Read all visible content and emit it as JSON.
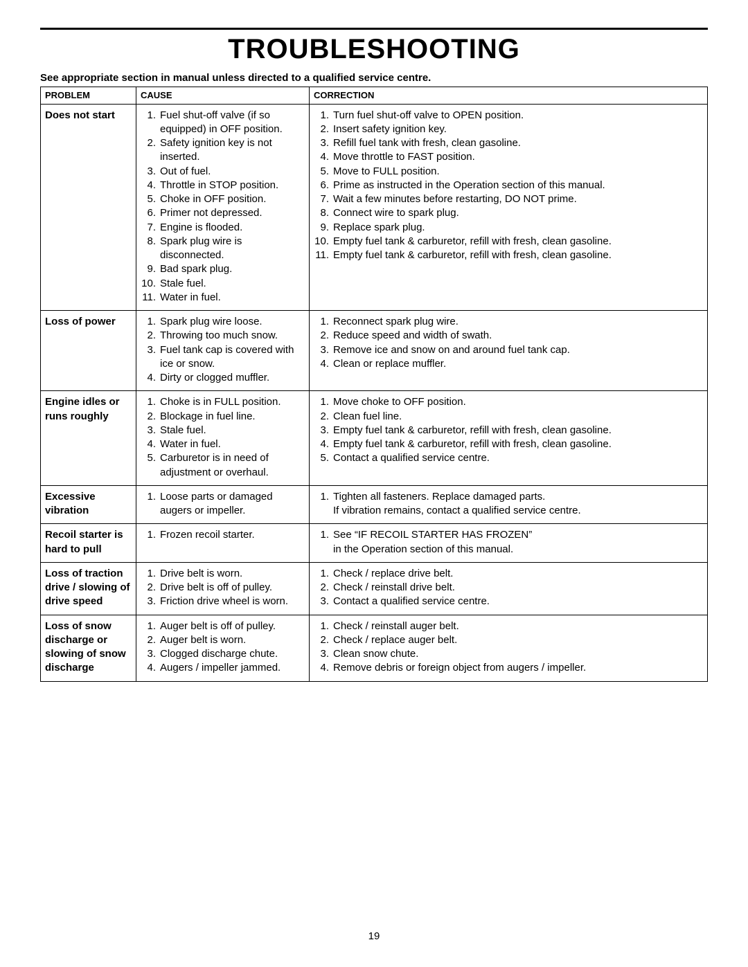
{
  "title": "TROUBLESHOOTING",
  "subtitle": "See appropriate section in manual unless directed to a qualified service centre.",
  "headers": {
    "problem": "PROBLEM",
    "cause": "CAUSE",
    "correction": "CORRECTION"
  },
  "page_number": "19",
  "rows": [
    {
      "problem": "Does not start",
      "causes": [
        "Fuel shut-off valve (if so equipped) in OFF position.",
        "Safety ignition key is not inserted.",
        "Out of fuel.",
        "Throttle in STOP position.",
        "Choke in OFF position.",
        "Primer not depressed.",
        "Engine is flooded.",
        "Spark plug wire is disconnected.",
        "Bad spark plug.",
        "Stale fuel.",
        "Water in fuel."
      ],
      "corrections": [
        "Turn fuel shut-off valve to OPEN position.\n ",
        "Insert safety ignition key.\n ",
        "Refill fuel tank with fresh, clean gasoline.",
        "Move throttle to FAST position.",
        "Move to FULL position.",
        "Prime as instructed in the Operation section of this manual.",
        "Wait a few minutes before restarting, DO NOT prime.",
        "Connect wire to spark plug.\n ",
        "Replace spark plug.",
        "Empty fuel tank & carburetor, refill with fresh, clean gasoline.",
        "Empty fuel tank & carburetor, refill with fresh, clean gasoline."
      ]
    },
    {
      "problem": "Loss of power",
      "causes": [
        "Spark plug wire loose.",
        "Throwing too much snow.",
        "Fuel tank cap is covered with ice or snow.",
        "Dirty or clogged muffler."
      ],
      "corrections": [
        "Reconnect spark plug wire.",
        "Reduce speed and width of swath.",
        "Remove ice and snow on and around fuel tank cap.\n ",
        "Clean or replace muffler."
      ]
    },
    {
      "problem": "Engine idles or runs roughly",
      "causes": [
        "Choke is in FULL position.",
        "Blockage in fuel line.",
        "Stale fuel.",
        "Water in fuel.",
        "Carburetor is in need of adjustment or overhaul."
      ],
      "corrections": [
        "Move choke to OFF position.",
        "Clean fuel line.",
        "Empty fuel tank & carburetor, refill with fresh, clean gasoline.",
        "Empty fuel tank & carburetor, refill with fresh, clean gasoline.",
        "Contact a qualified service centre."
      ]
    },
    {
      "problem": "Excessive vibration",
      "causes": [
        "Loose parts or damaged augers or impeller."
      ],
      "corrections": [
        "Tighten all fasteners.  Replace damaged parts.\nIf vibration remains, contact a qualified service centre."
      ]
    },
    {
      "problem": "Recoil starter is hard to pull",
      "causes": [
        "Frozen recoil starter."
      ],
      "corrections": [
        "See “IF RECOIL STARTER HAS FROZEN”\nin the Operation section of this manual."
      ]
    },
    {
      "problem": "Loss of traction drive / slowing of drive speed",
      "causes": [
        "Drive belt is worn.",
        "Drive belt is off of pulley.",
        "Friction drive wheel is worn."
      ],
      "corrections": [
        "Check / replace drive belt.",
        "Check / reinstall drive belt.",
        "Contact a qualified service centre."
      ]
    },
    {
      "problem": "Loss of snow discharge or slowing of snow discharge",
      "causes": [
        "Auger belt is off of pulley.",
        "Auger belt is worn.",
        "Clogged discharge chute.",
        "Augers / impeller jammed."
      ],
      "corrections": [
        "Check / reinstall auger belt.",
        "Check / replace auger belt.",
        "Clean snow chute.",
        "Remove debris or foreign object from augers / impeller."
      ]
    }
  ]
}
